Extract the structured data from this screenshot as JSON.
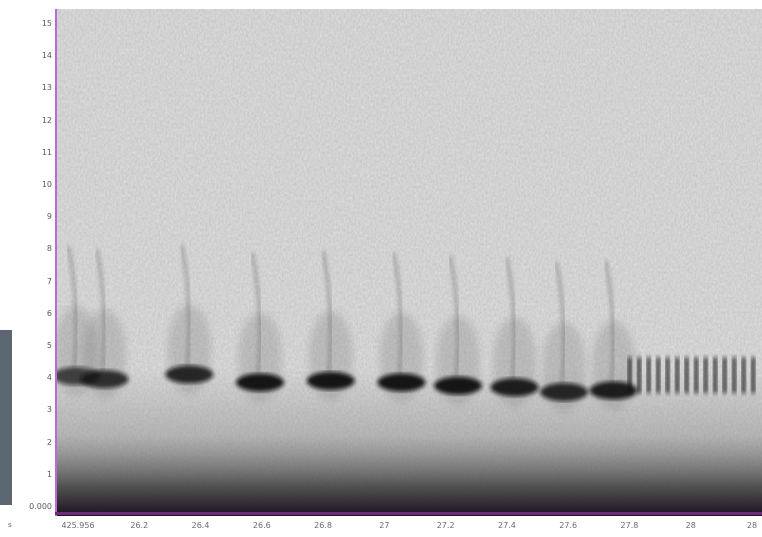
{
  "chart_data": {
    "type": "heatmap",
    "title": "",
    "xlabel": "",
    "ylabel": "",
    "y_ticks": [
      "15",
      "14",
      "13",
      "12",
      "11",
      "10",
      "9",
      "8",
      "7",
      "6",
      "5",
      "4",
      "3",
      "2",
      "1",
      "0.000"
    ],
    "x_ticks": [
      "425.956",
      "26.2",
      "26.4",
      "26.6",
      "26.8",
      "27",
      "27.2",
      "27.4",
      "27.6",
      "27.8",
      "28",
      "28"
    ],
    "corner_label": "s",
    "ylim": [
      0,
      15.5
    ],
    "xlim": [
      425.956,
      28.1
    ],
    "colormap": {
      "low": "#e4e4e4",
      "high": "#0a0a0a",
      "floor": "#3a2a45"
    },
    "note_marks": [
      {
        "t": 0.03,
        "f": 4.1,
        "strength": 0.7
      },
      {
        "t": 0.07,
        "f": 4.0,
        "strength": 0.8
      },
      {
        "t": 0.19,
        "f": 4.15,
        "strength": 0.85
      },
      {
        "t": 0.29,
        "f": 3.9,
        "strength": 0.95
      },
      {
        "t": 0.39,
        "f": 3.95,
        "strength": 0.95
      },
      {
        "t": 0.49,
        "f": 3.9,
        "strength": 0.95
      },
      {
        "t": 0.57,
        "f": 3.8,
        "strength": 0.95
      },
      {
        "t": 0.65,
        "f": 3.75,
        "strength": 0.9
      },
      {
        "t": 0.72,
        "f": 3.6,
        "strength": 0.85
      },
      {
        "t": 0.79,
        "f": 3.65,
        "strength": 0.9
      }
    ],
    "trill_start": 0.81,
    "trill_end": 0.995,
    "trill_f": 4.0
  }
}
